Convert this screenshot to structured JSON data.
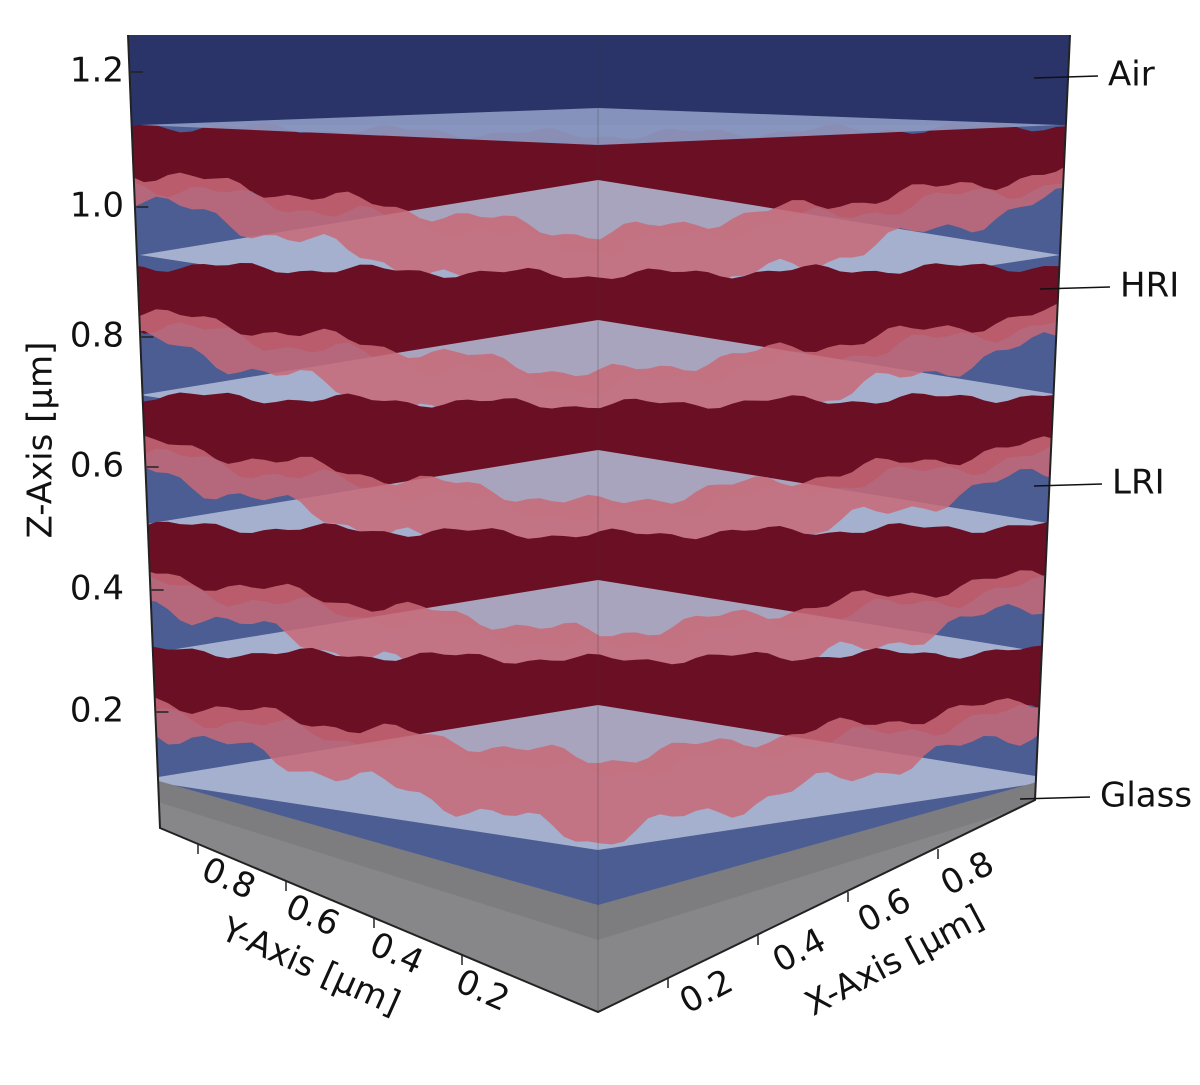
{
  "z_axis": {
    "label": "Z-Axis [µm]",
    "ticks": [
      "1.2",
      "1.0",
      "0.8",
      "0.6",
      "0.4",
      "0.2"
    ]
  },
  "y_axis": {
    "label": "Y-Axis [µm]",
    "ticks": [
      "0.8",
      "0.6",
      "0.4",
      "0.2"
    ]
  },
  "x_axis": {
    "label": "X-Axis [µm]",
    "ticks": [
      "0.2",
      "0.4",
      "0.6",
      "0.8"
    ]
  },
  "layers": [
    "Air",
    "HRI",
    "LRI",
    "Glass"
  ]
}
